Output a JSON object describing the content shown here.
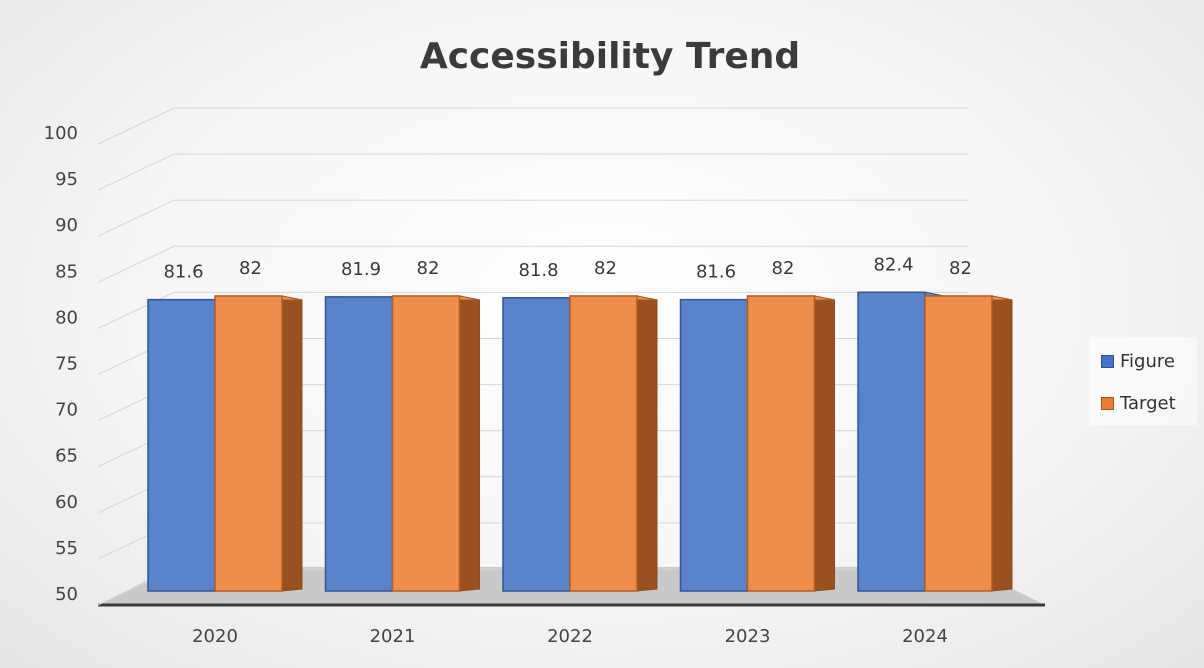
{
  "chart_data": {
    "type": "bar",
    "title": "Accessibility Trend",
    "categories": [
      "2020",
      "2021",
      "2022",
      "2023",
      "2024"
    ],
    "series": [
      {
        "name": "Figure",
        "values": [
          81.6,
          81.9,
          81.8,
          81.6,
          82.4
        ],
        "color": "#4472C4"
      },
      {
        "name": "Target",
        "values": [
          82,
          82,
          82,
          82,
          82
        ],
        "color": "#ED7D31"
      }
    ],
    "ylim": [
      50,
      100
    ],
    "yticks": [
      50,
      55,
      60,
      65,
      70,
      75,
      80,
      85,
      90,
      95,
      100
    ],
    "legend_position": "right",
    "grid": true,
    "style": "3d-clustered-column"
  }
}
